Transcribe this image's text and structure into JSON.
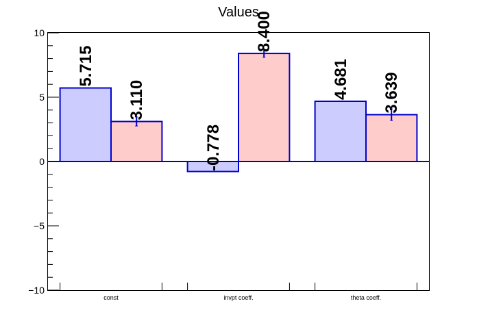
{
  "chart_data": {
    "type": "bar",
    "title": "Values",
    "xlabel": "",
    "ylabel": "",
    "ylim": [
      -10,
      10
    ],
    "yticks": [
      -10,
      -5,
      0,
      5,
      10
    ],
    "ytick_labels": [
      "−10",
      "−5",
      "0",
      "5",
      "10"
    ],
    "categories": [
      "const",
      "invpt coeff.",
      "theta coeff."
    ],
    "series": [
      {
        "values": [
          5.715,
          -0.778,
          4.681
        ],
        "labels": [
          "5.715",
          "-0.778",
          "4.681"
        ],
        "errors": [
          0,
          0,
          0
        ],
        "fill": "#ccccff",
        "stroke": "#0000cc"
      },
      {
        "values": [
          3.11,
          8.4,
          3.639
        ],
        "labels": [
          "3.110",
          "8.400",
          "3.639"
        ],
        "errors": [
          0.35,
          0.3,
          0.45
        ],
        "fill": "#ffcccc",
        "stroke": "#0000cc"
      }
    ],
    "grid": false,
    "legend": "none"
  }
}
